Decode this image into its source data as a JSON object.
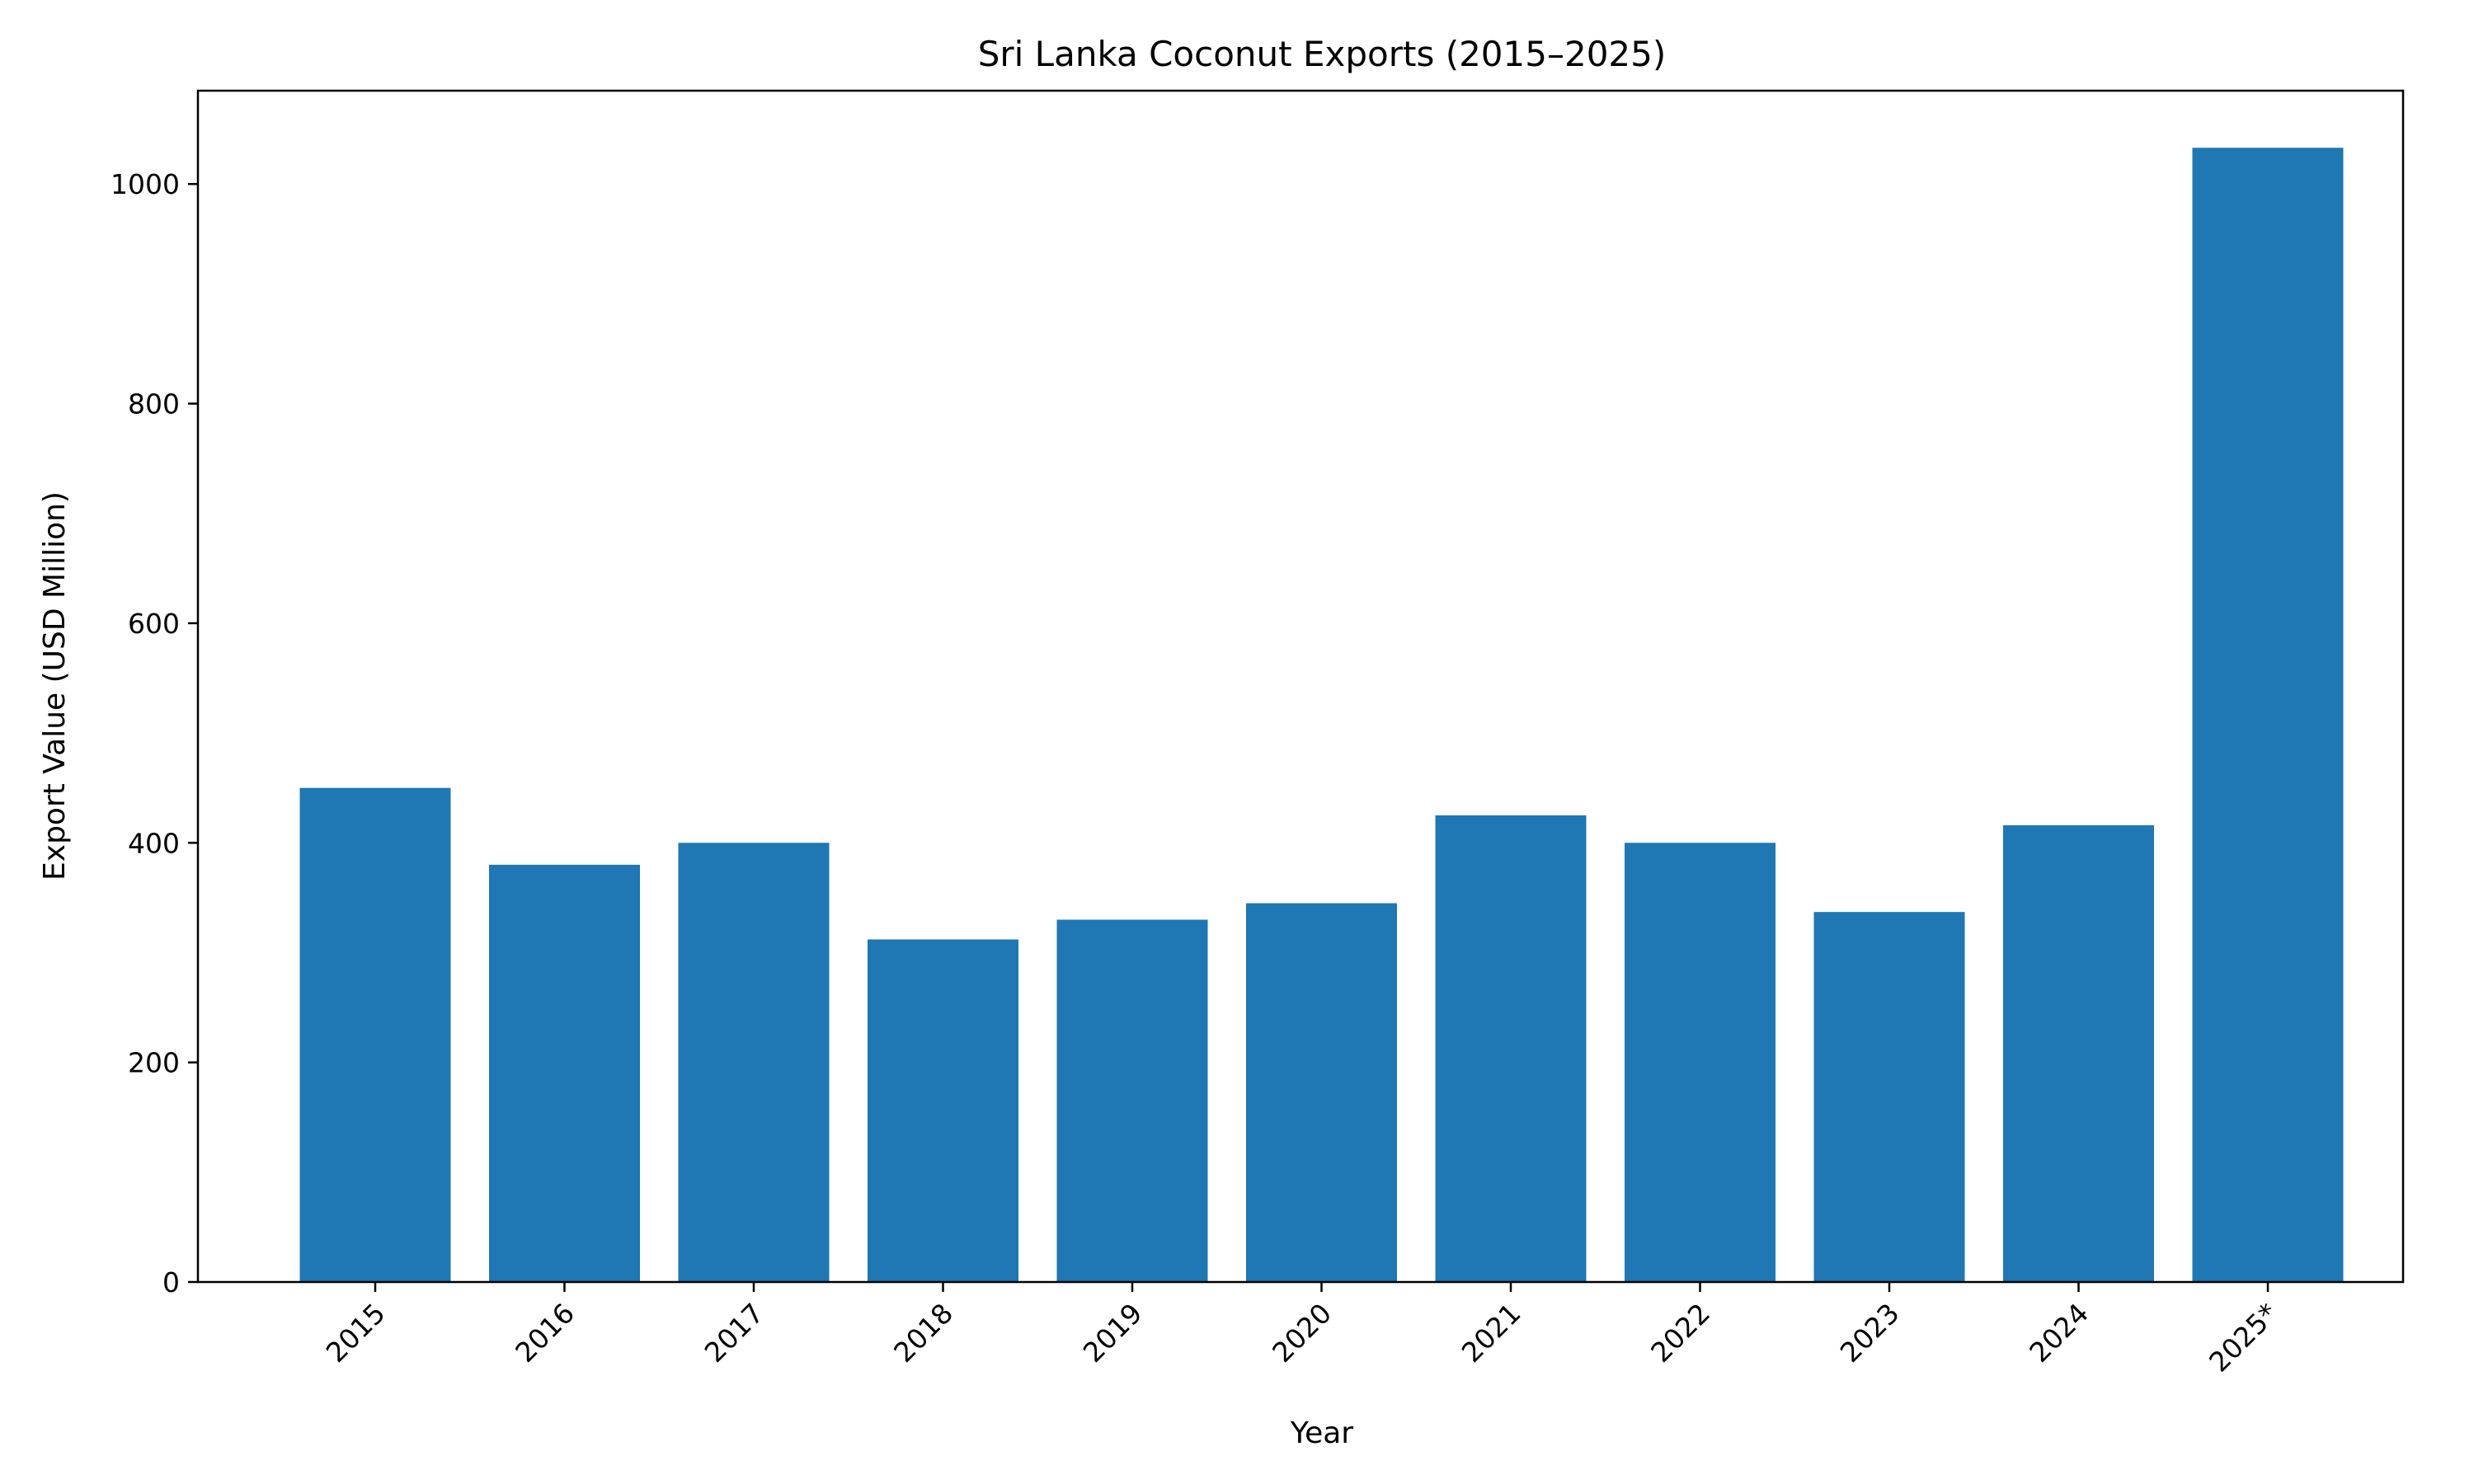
{
  "chart_data": {
    "type": "bar",
    "title": "Sri Lanka Coconut Exports (2015–2025)",
    "xlabel": "Year",
    "ylabel": "Export Value (USD Million)",
    "categories": [
      "2015",
      "2016",
      "2017",
      "2018",
      "2019",
      "2020",
      "2021",
      "2022",
      "2023",
      "2024",
      "2025*"
    ],
    "values": [
      450,
      380,
      400,
      312,
      330,
      345,
      425,
      400,
      337,
      416,
      1033
    ],
    "ylim": [
      0,
      1085
    ],
    "yticks": [
      0,
      200,
      400,
      600,
      800,
      1000
    ],
    "bar_color": "#1f77b4",
    "grid": false,
    "legend": "none"
  }
}
